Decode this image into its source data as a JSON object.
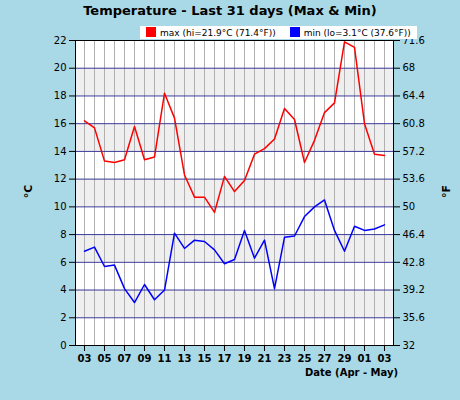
{
  "chart_data": {
    "type": "line",
    "title": "Temperature - Last 31 days (Max & Min)",
    "x_label": "Date (Apr - May)",
    "y_label": "°C",
    "y2_label": "°F",
    "categories": [
      "03",
      null,
      "05",
      null,
      "07",
      null,
      "09",
      null,
      "11",
      null,
      "13",
      null,
      "15",
      null,
      "17",
      null,
      "19",
      null,
      "21",
      null,
      "23",
      null,
      "25",
      null,
      "27",
      null,
      "29",
      null,
      "01",
      null,
      "03"
    ],
    "series": [
      {
        "name": "max (hi=21.9°C (71.4°F))",
        "color": "#ff0000",
        "values": [
          16.2,
          15.7,
          13.3,
          13.2,
          13.4,
          15.8,
          13.4,
          13.6,
          18.2,
          16.4,
          12.3,
          10.7,
          10.7,
          9.6,
          12.2,
          11.1,
          11.9,
          13.8,
          14.2,
          14.9,
          17.1,
          16.3,
          13.2,
          14.8,
          16.8,
          17.5,
          21.9,
          21.5,
          16.0,
          13.8,
          13.7
        ]
      },
      {
        "name": "min (lo=3.1°C (37.6°F))",
        "color": "#0000ff",
        "values": [
          6.8,
          7.1,
          5.7,
          5.8,
          4.1,
          3.1,
          4.4,
          3.3,
          4.0,
          8.1,
          7.0,
          7.6,
          7.5,
          6.9,
          5.9,
          6.2,
          8.3,
          6.3,
          7.6,
          4.1,
          7.8,
          7.9,
          9.3,
          10.0,
          10.5,
          8.3,
          6.8,
          8.6,
          8.3,
          8.4,
          8.7
        ]
      }
    ],
    "ylim": [
      0,
      22
    ],
    "yticks": [
      0,
      2,
      4,
      6,
      8,
      10,
      12,
      14,
      16,
      18,
      20,
      22
    ],
    "y2lim": [
      32,
      71.6
    ],
    "y2ticks": [
      32,
      35.6,
      39.2,
      42.8,
      46.4,
      50,
      53.6,
      57.2,
      60.8,
      64.4,
      68,
      71.6
    ],
    "grid": true
  }
}
